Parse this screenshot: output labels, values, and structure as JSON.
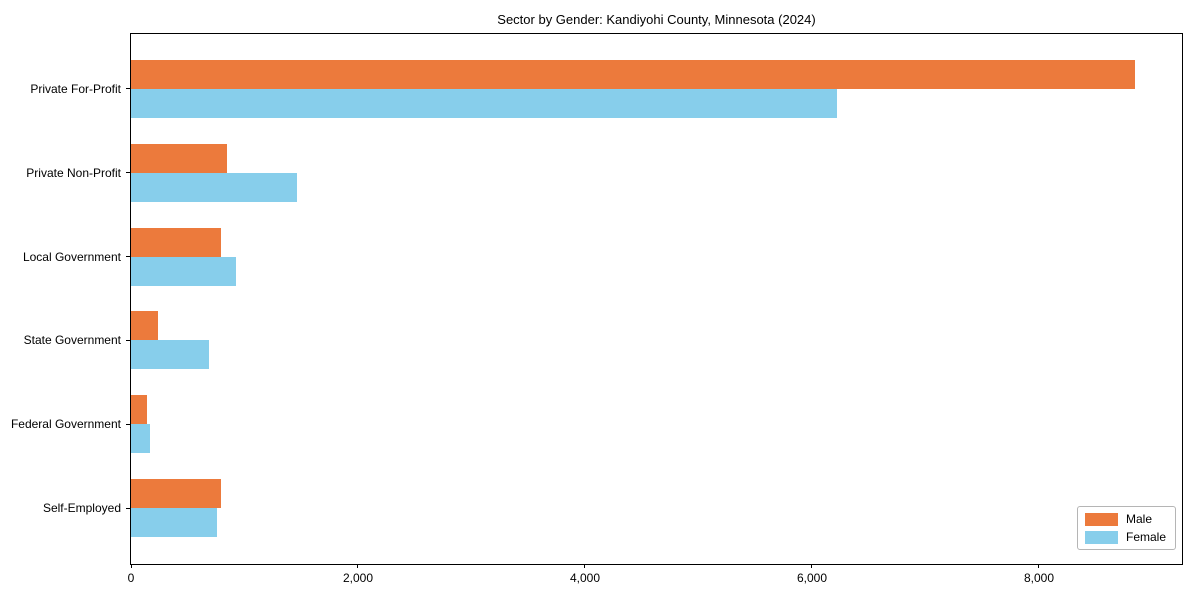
{
  "chart_data": {
    "type": "bar",
    "orientation": "horizontal",
    "title": "Sector by Gender: Kandiyohi County, Minnesota (2024)",
    "categories": [
      "Private For-Profit",
      "Private Non-Profit",
      "Local Government",
      "State Government",
      "Federal Government",
      "Self-Employed"
    ],
    "series": [
      {
        "name": "Male",
        "color": "#EC7A3C",
        "values": [
          8850,
          845,
          795,
          235,
          140,
          795
        ]
      },
      {
        "name": "Female",
        "color": "#87CEEB",
        "values": [
          6220,
          1465,
          925,
          690,
          170,
          755
        ]
      }
    ],
    "xlim": [
      0,
      9260
    ],
    "xticks": [
      0,
      2000,
      4000,
      6000,
      8000
    ],
    "xtick_labels": [
      "0",
      "2,000",
      "4,000",
      "6,000",
      "8,000"
    ],
    "ylabel": "",
    "xlabel": "",
    "grid": false,
    "legend_position": "lower right"
  }
}
